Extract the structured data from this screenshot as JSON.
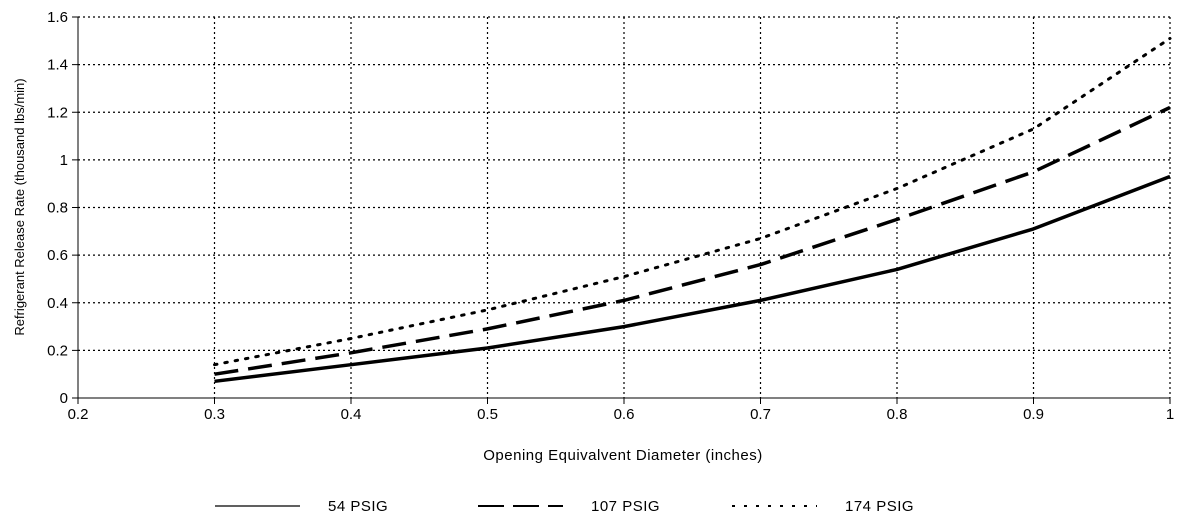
{
  "chart_data": {
    "type": "line",
    "title": "",
    "xlabel": "Opening Equivalvent Diameter (inches)",
    "ylabel": "Refrigerant Release Rate (thousand lbs/min)",
    "xlim": [
      0.2,
      1.0
    ],
    "ylim": [
      0,
      1.6
    ],
    "xticks": [
      "0.2",
      "0.3",
      "0.4",
      "0.5",
      "0.6",
      "0.7",
      "0.8",
      "0.9",
      "1"
    ],
    "yticks": [
      "0",
      "0.2",
      "0.4",
      "0.6",
      "0.8",
      "1",
      "1.2",
      "1.4",
      "1.6"
    ],
    "xtick_values": [
      0.2,
      0.3,
      0.4,
      0.5,
      0.6,
      0.7,
      0.8,
      0.9,
      1.0
    ],
    "ytick_values": [
      0,
      0.2,
      0.4,
      0.6,
      0.8,
      1.0,
      1.2,
      1.4,
      1.6
    ],
    "grid": true,
    "legend_position": "bottom",
    "x": [
      0.3,
      0.4,
      0.5,
      0.6,
      0.7,
      0.8,
      0.9,
      1.0
    ],
    "series": [
      {
        "name": "54 PSIG",
        "style": "solid",
        "color": "#000000",
        "values": [
          0.07,
          0.14,
          0.21,
          0.3,
          0.41,
          0.54,
          0.71,
          0.93
        ]
      },
      {
        "name": "107 PSIG",
        "style": "dashed",
        "color": "#000000",
        "values": [
          0.1,
          0.19,
          0.29,
          0.41,
          0.56,
          0.75,
          0.95,
          1.22
        ]
      },
      {
        "name": "174 PSIG",
        "style": "dotted",
        "color": "#000000",
        "values": [
          0.14,
          0.25,
          0.37,
          0.51,
          0.67,
          0.88,
          1.13,
          1.51
        ]
      }
    ]
  }
}
